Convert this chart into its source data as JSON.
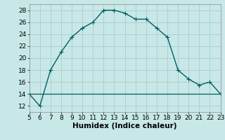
{
  "x": [
    5,
    6,
    7,
    8,
    9,
    10,
    11,
    12,
    13,
    14,
    15,
    16,
    17,
    18,
    19,
    20,
    21,
    22,
    23
  ],
  "y": [
    14,
    12,
    18,
    21,
    23.5,
    25,
    26,
    28,
    28,
    27.5,
    26.5,
    26.5,
    25,
    23.5,
    18,
    16.5,
    15.5,
    16,
    14
  ],
  "hline_y": 14,
  "line_color": "#006060",
  "bg_color": "#c8e8e8",
  "grid_color": "#aacccc",
  "xlabel": "Humidex (Indice chaleur)",
  "xlim": [
    5,
    23
  ],
  "ylim": [
    11,
    29
  ],
  "yticks": [
    12,
    14,
    16,
    18,
    20,
    22,
    24,
    26,
    28
  ],
  "xticks": [
    5,
    6,
    7,
    8,
    9,
    10,
    11,
    12,
    13,
    14,
    15,
    16,
    17,
    18,
    19,
    20,
    21,
    22,
    23
  ],
  "marker": "+",
  "marker_size": 4,
  "line_width": 1.0,
  "font_size": 6.5,
  "xlabel_fontsize": 7.5
}
